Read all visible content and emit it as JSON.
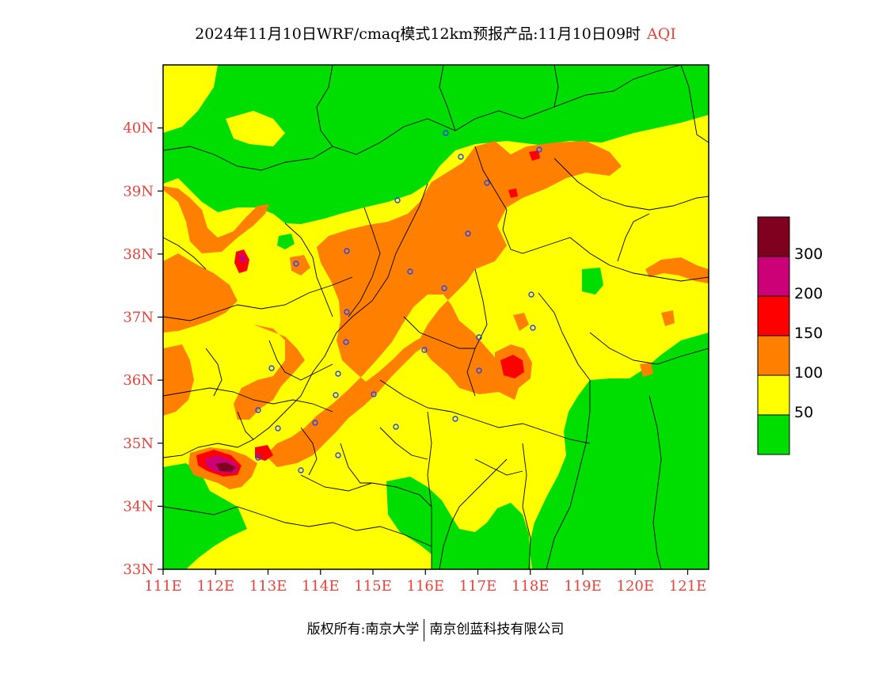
{
  "title": {
    "main": "2024年11月10日WRF/cmaq模式12km预报产品:11月10日09时",
    "highlight": "AQI"
  },
  "axes": {
    "lat_labels": [
      "40N",
      "39N",
      "38N",
      "37N",
      "36N",
      "35N",
      "34N",
      "33N"
    ],
    "lon_labels": [
      "111E",
      "112E",
      "113E",
      "114E",
      "115E",
      "116E",
      "117E",
      "118E",
      "119E",
      "120E",
      "121E"
    ],
    "lat_range": [
      33,
      41
    ],
    "lon_range": [
      111,
      121.4
    ],
    "label_color": "#e8423a"
  },
  "legend": {
    "labels": [
      "300",
      "200",
      "150",
      "100",
      "50"
    ],
    "colors": [
      "#00dd00",
      "#ffff00",
      "#ff8000",
      "#ff0000",
      "#cc0077",
      "#800020"
    ]
  },
  "aqi_palette": {
    "good": "#00dd00",
    "moderate": "#ffff00",
    "unhealthy_sensitive": "#ff8000",
    "unhealthy": "#ff0000",
    "very_unhealthy": "#cc0077",
    "hazardous": "#800020"
  },
  "footer": {
    "left": "版权所有:南京大学",
    "right": "南京创蓝科技有限公司"
  }
}
